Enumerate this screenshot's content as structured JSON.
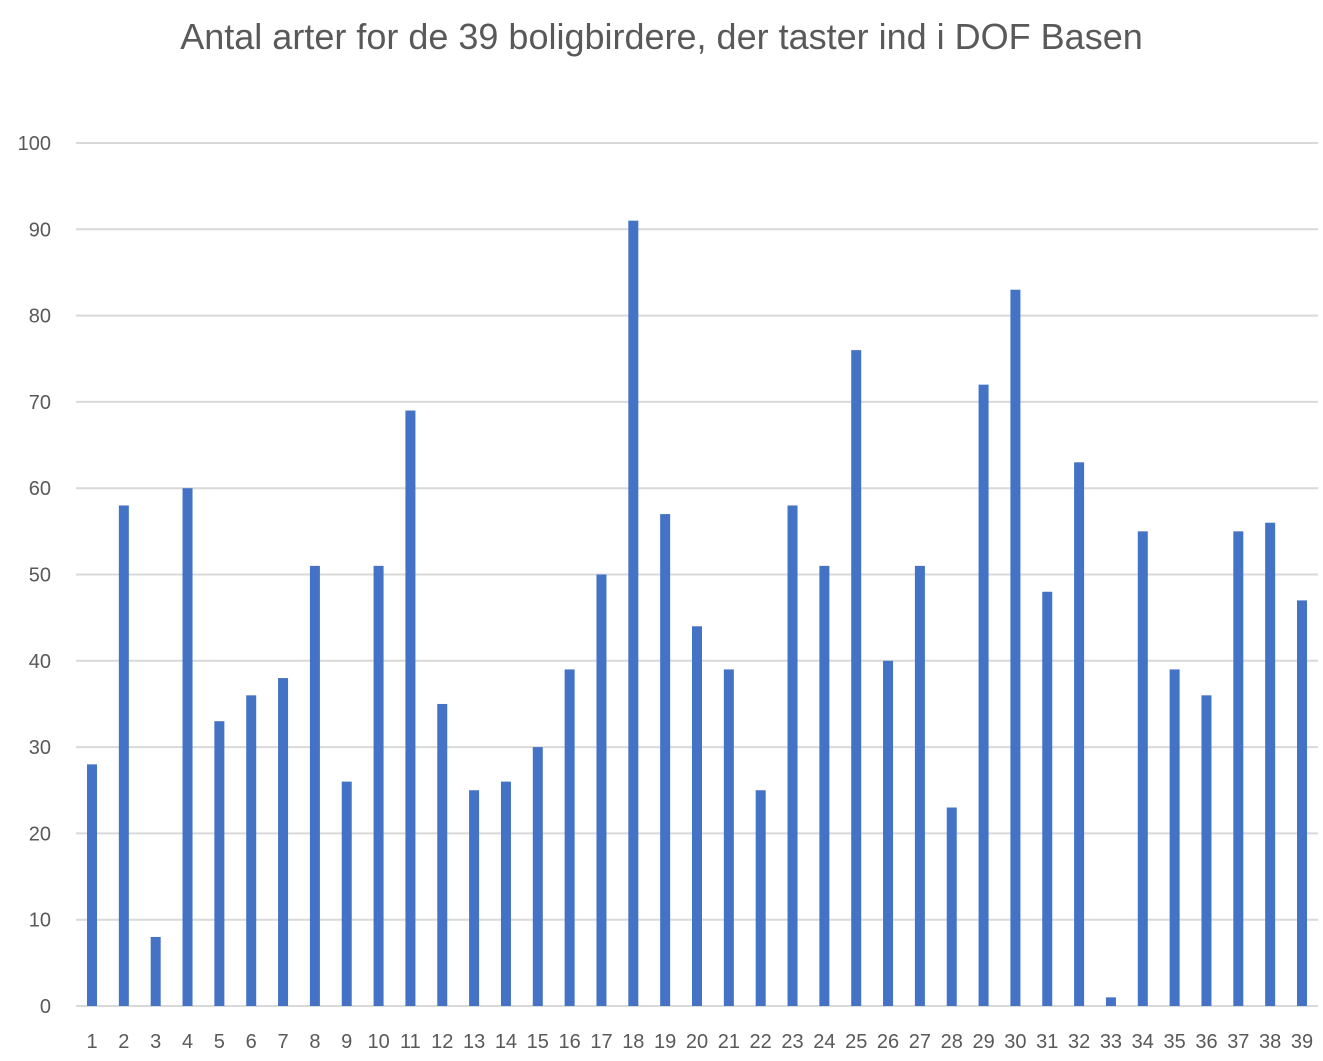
{
  "chart_data": {
    "type": "bar",
    "title": "Antal arter for de 39 boligbirdere, der taster ind i DOF Basen",
    "xlabel": "",
    "ylabel": "",
    "categories": [
      "1",
      "2",
      "3",
      "4",
      "5",
      "6",
      "7",
      "8",
      "9",
      "10",
      "11",
      "12",
      "13",
      "14",
      "15",
      "16",
      "17",
      "18",
      "19",
      "20",
      "21",
      "22",
      "23",
      "24",
      "25",
      "26",
      "27",
      "28",
      "29",
      "30",
      "31",
      "32",
      "33",
      "34",
      "35",
      "36",
      "37",
      "38",
      "39"
    ],
    "values": [
      28,
      58,
      8,
      60,
      33,
      36,
      38,
      51,
      26,
      51,
      69,
      35,
      25,
      26,
      30,
      39,
      50,
      91,
      57,
      44,
      39,
      25,
      58,
      51,
      76,
      40,
      51,
      23,
      72,
      83,
      48,
      63,
      1,
      55,
      39,
      36,
      55,
      56,
      47
    ],
    "ylim": [
      0,
      100
    ],
    "yticks": [
      0,
      10,
      20,
      30,
      40,
      50,
      60,
      70,
      80,
      90,
      100
    ],
    "grid": true,
    "legend": "none",
    "bar_color": "#4472c4",
    "grid_color": "#d9d9d9",
    "text_color": "#595959"
  }
}
